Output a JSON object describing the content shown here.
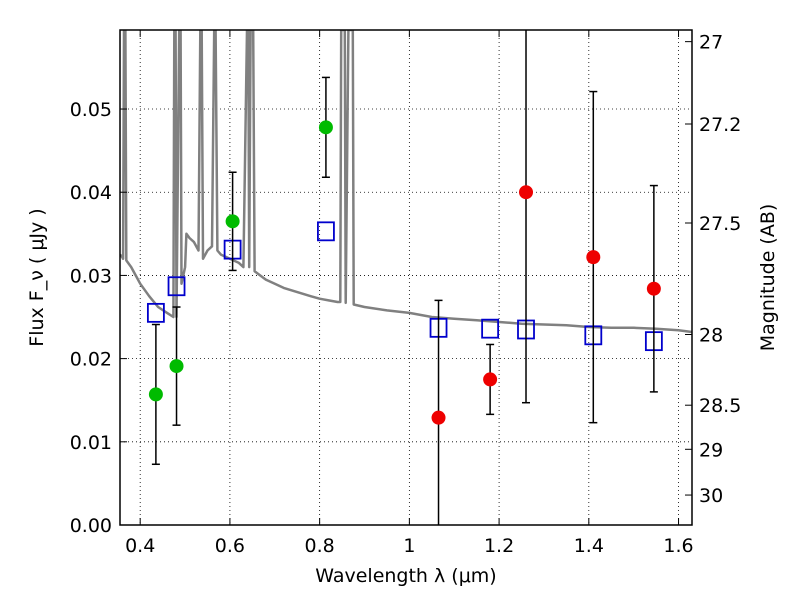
{
  "chart_data": {
    "type": "scatter",
    "xlabel": "Wavelength  λ (μm)",
    "ylabel": "Flux  F_ν  ( μJy )",
    "ylabel_right": "Magnitude (AB)",
    "xlim": [
      0.355,
      1.63
    ],
    "ylim": [
      0.0,
      0.0595
    ],
    "grid": true,
    "x_ticks": [
      0.4,
      0.6,
      0.8,
      1.0,
      1.2,
      1.4,
      1.6
    ],
    "x_tick_labels": [
      "0.4",
      "0.6",
      "0.8",
      "1",
      "1.2",
      "1.4",
      "1.6"
    ],
    "y_ticks": [
      0.0,
      0.01,
      0.02,
      0.03,
      0.04,
      0.05
    ],
    "y_tick_labels": [
      "0.00",
      "0.01",
      "0.02",
      "0.03",
      "0.04",
      "0.05"
    ],
    "right_axis_ticks": [
      {
        "flux": 0.0581,
        "label": "27"
      },
      {
        "flux": 0.0482,
        "label": "27.2"
      },
      {
        "flux": 0.0363,
        "label": "27.5"
      },
      {
        "flux": 0.0229,
        "label": "28"
      },
      {
        "flux": 0.0144,
        "label": "28.5"
      },
      {
        "flux": 0.0091,
        "label": "29"
      },
      {
        "flux": 0.0036,
        "label": "30"
      }
    ],
    "series": [
      {
        "color": "#00bb00",
        "marker": "circle",
        "points": [
          {
            "x": 0.435,
            "y": 0.0157,
            "yerr_low": 0.0084,
            "yerr_high": 0.0084
          },
          {
            "x": 0.481,
            "y": 0.0191,
            "yerr_low": 0.0071,
            "yerr_high": 0.0071
          },
          {
            "x": 0.606,
            "y": 0.0365,
            "yerr_low": 0.0059,
            "yerr_high": 0.0059
          },
          {
            "x": 0.814,
            "y": 0.0478,
            "yerr_low": 0.006,
            "yerr_high": 0.006
          }
        ]
      },
      {
        "color": "#ee0000",
        "marker": "circle",
        "points": [
          {
            "x": 1.065,
            "y": 0.0129,
            "yerr_low": 0.0141,
            "yerr_high": 0.0141
          },
          {
            "x": 1.18,
            "y": 0.0175,
            "yerr_low": 0.0042,
            "yerr_high": 0.0042
          },
          {
            "x": 1.26,
            "y": 0.04,
            "yerr_low": 0.0253,
            "yerr_high": 0.0253
          },
          {
            "x": 1.41,
            "y": 0.0322,
            "yerr_low": 0.0199,
            "yerr_high": 0.0199
          },
          {
            "x": 1.545,
            "y": 0.0284,
            "yerr_low": 0.0124,
            "yerr_high": 0.0124
          }
        ]
      },
      {
        "color": "#0000cc",
        "marker": "open-square",
        "points": [
          {
            "x": 0.435,
            "y": 0.0255
          },
          {
            "x": 0.481,
            "y": 0.0287
          },
          {
            "x": 0.606,
            "y": 0.0331
          },
          {
            "x": 0.814,
            "y": 0.0353
          },
          {
            "x": 1.065,
            "y": 0.0237
          },
          {
            "x": 1.18,
            "y": 0.0236
          },
          {
            "x": 1.26,
            "y": 0.0235
          },
          {
            "x": 1.41,
            "y": 0.0228
          },
          {
            "x": 1.545,
            "y": 0.0221
          }
        ]
      },
      {
        "color": "#808080",
        "marker": "line",
        "points": [
          [
            0.355,
            0.0325
          ],
          [
            0.36,
            0.0322
          ],
          [
            0.362,
            0.032
          ],
          [
            0.364,
            0.0595
          ],
          [
            0.367,
            0.0595
          ],
          [
            0.369,
            0.0318
          ],
          [
            0.38,
            0.031
          ],
          [
            0.39,
            0.03
          ],
          [
            0.4,
            0.029
          ],
          [
            0.42,
            0.0275
          ],
          [
            0.44,
            0.0262
          ],
          [
            0.46,
            0.0255
          ],
          [
            0.474,
            0.025
          ],
          [
            0.476,
            0.0595
          ],
          [
            0.479,
            0.0595
          ],
          [
            0.481,
            0.025
          ],
          [
            0.487,
            0.0595
          ],
          [
            0.49,
            0.0595
          ],
          [
            0.492,
            0.029
          ],
          [
            0.5,
            0.031
          ],
          [
            0.503,
            0.035
          ],
          [
            0.51,
            0.0345
          ],
          [
            0.52,
            0.034
          ],
          [
            0.53,
            0.033
          ],
          [
            0.534,
            0.0595
          ],
          [
            0.537,
            0.0595
          ],
          [
            0.54,
            0.032
          ],
          [
            0.55,
            0.033
          ],
          [
            0.56,
            0.0335
          ],
          [
            0.565,
            0.0595
          ],
          [
            0.568,
            0.0595
          ],
          [
            0.572,
            0.033
          ],
          [
            0.58,
            0.0325
          ],
          [
            0.6,
            0.032
          ],
          [
            0.62,
            0.0315
          ],
          [
            0.63,
            0.031
          ],
          [
            0.638,
            0.0595
          ],
          [
            0.641,
            0.0595
          ],
          [
            0.643,
            0.031
          ],
          [
            0.646,
            0.0595
          ],
          [
            0.652,
            0.0595
          ],
          [
            0.655,
            0.0305
          ],
          [
            0.68,
            0.0295
          ],
          [
            0.7,
            0.029
          ],
          [
            0.72,
            0.0285
          ],
          [
            0.75,
            0.028
          ],
          [
            0.78,
            0.0275
          ],
          [
            0.8,
            0.0272
          ],
          [
            0.82,
            0.027
          ],
          [
            0.84,
            0.0268
          ],
          [
            0.846,
            0.0268
          ],
          [
            0.848,
            0.0595
          ],
          [
            0.856,
            0.0595
          ],
          [
            0.858,
            0.0267
          ],
          [
            0.864,
            0.0595
          ],
          [
            0.874,
            0.0595
          ],
          [
            0.876,
            0.0265
          ],
          [
            0.9,
            0.0262
          ],
          [
            0.95,
            0.0258
          ],
          [
            1.0,
            0.0255
          ],
          [
            1.05,
            0.025
          ],
          [
            1.1,
            0.0248
          ],
          [
            1.15,
            0.0246
          ],
          [
            1.2,
            0.0244
          ],
          [
            1.25,
            0.0242
          ],
          [
            1.3,
            0.0241
          ],
          [
            1.35,
            0.024
          ],
          [
            1.4,
            0.0238
          ],
          [
            1.45,
            0.0237
          ],
          [
            1.5,
            0.0237
          ],
          [
            1.55,
            0.0236
          ],
          [
            1.6,
            0.0234
          ],
          [
            1.63,
            0.0232
          ]
        ]
      }
    ]
  }
}
